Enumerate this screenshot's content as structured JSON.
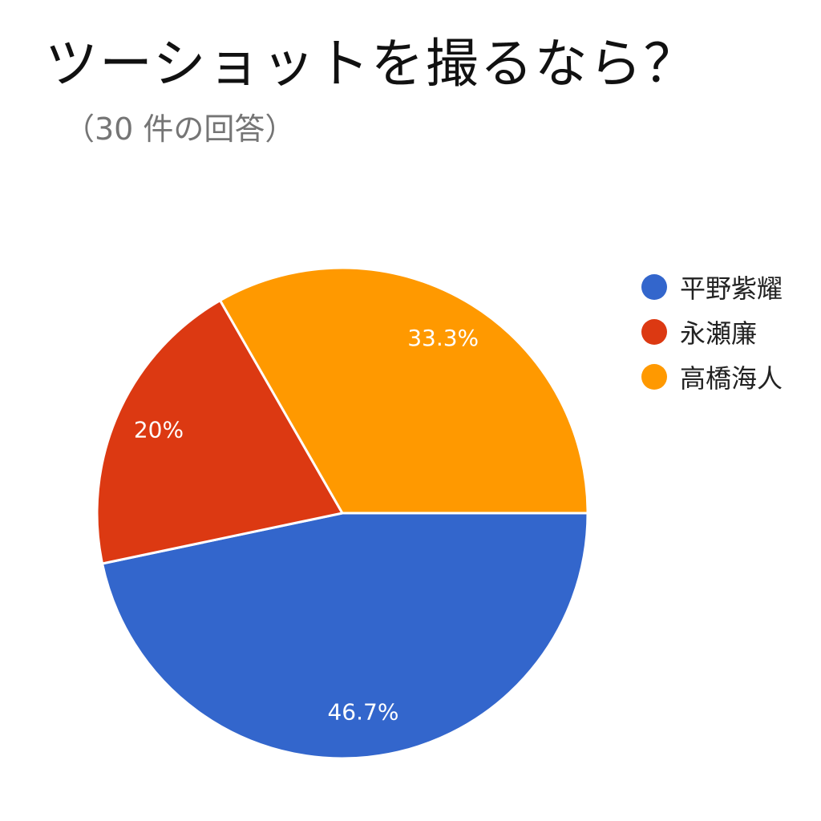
{
  "chart_data": {
    "type": "pie",
    "title": "ツーショットを撮るなら？",
    "subtitle": "（30 件の回答）",
    "categories": [
      "平野紫耀",
      "永瀬廉",
      "高橋海人"
    ],
    "values": [
      46.7,
      20,
      33.3
    ],
    "percent_labels": [
      "46.7%",
      "20%",
      "33.3%"
    ],
    "colors": [
      "#3366cc",
      "#dc3912",
      "#ff9900"
    ],
    "legend_position": "right"
  }
}
